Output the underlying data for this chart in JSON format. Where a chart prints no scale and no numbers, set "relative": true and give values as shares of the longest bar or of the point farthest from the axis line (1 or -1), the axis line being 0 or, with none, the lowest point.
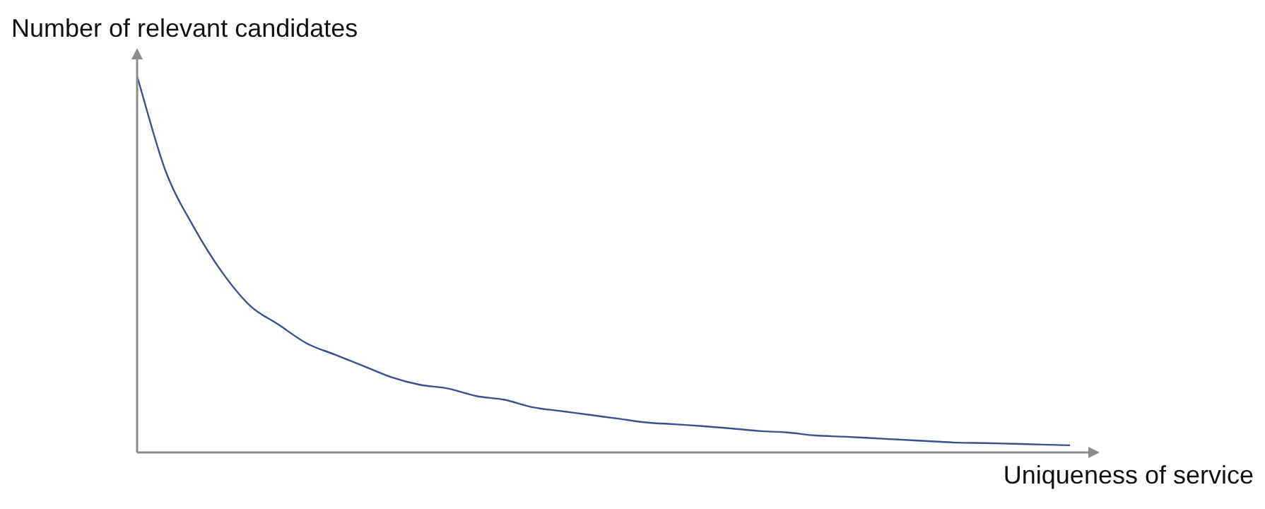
{
  "chart_data": {
    "type": "line",
    "relative": true,
    "xlabel": "Uniqueness of service",
    "ylabel": "Number of relevant candidates",
    "color": "#3a4f8e",
    "legend": false,
    "marker": "none",
    "categories": [
      null,
      null,
      null,
      null,
      null,
      null,
      null,
      null,
      null,
      null,
      null,
      null,
      null,
      null,
      null,
      null,
      null,
      null,
      null,
      null,
      null,
      null,
      null,
      null,
      null,
      null,
      null,
      null,
      null,
      null,
      null,
      null,
      null,
      null
    ],
    "values": [
      1,
      0.75,
      0.6,
      0.48,
      0.39,
      0.34,
      0.29,
      0.26,
      0.23,
      0.2,
      0.18,
      0.17,
      0.15,
      0.14,
      0.12,
      0.11,
      0.1,
      0.09,
      0.08,
      0.075,
      0.07,
      0.064,
      0.057,
      0.053,
      0.045,
      0.042,
      0.038,
      0.034,
      0.03,
      0.026,
      0.025,
      0.023,
      0.021,
      0.019
    ]
  }
}
